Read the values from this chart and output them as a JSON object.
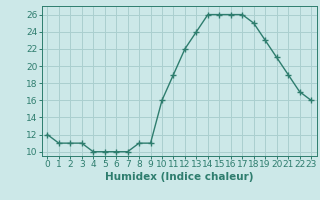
{
  "x": [
    0,
    1,
    2,
    3,
    4,
    5,
    6,
    7,
    8,
    9,
    10,
    11,
    12,
    13,
    14,
    15,
    16,
    17,
    18,
    19,
    20,
    21,
    22,
    23
  ],
  "y": [
    12,
    11,
    11,
    11,
    10,
    10,
    10,
    10,
    11,
    11,
    16,
    19,
    22,
    24,
    26,
    26,
    26,
    26,
    25,
    23,
    21,
    19,
    17,
    16
  ],
  "line_color": "#2e7d6e",
  "marker": "+",
  "marker_size": 4,
  "bg_color": "#cce8e8",
  "grid_color": "#aacfcf",
  "xlabel": "Humidex (Indice chaleur)",
  "xlim": [
    -0.5,
    23.5
  ],
  "ylim": [
    9.5,
    27
  ],
  "yticks": [
    10,
    12,
    14,
    16,
    18,
    20,
    22,
    24,
    26
  ],
  "xticks": [
    0,
    1,
    2,
    3,
    4,
    5,
    6,
    7,
    8,
    9,
    10,
    11,
    12,
    13,
    14,
    15,
    16,
    17,
    18,
    19,
    20,
    21,
    22,
    23
  ],
  "tick_color": "#2e7d6e",
  "label_fontsize": 6.5,
  "xlabel_fontsize": 7.5
}
